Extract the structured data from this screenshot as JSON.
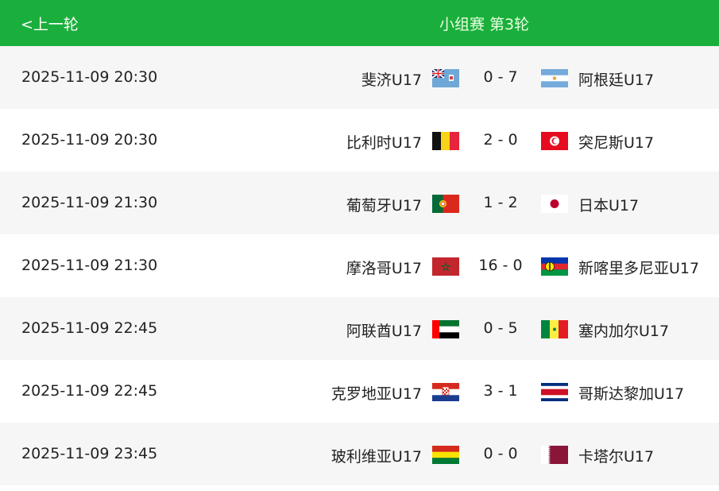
{
  "header": {
    "prev_label": "<上一轮",
    "title": "小组赛 第3轮",
    "color": "#1aaf3c"
  },
  "matches": [
    {
      "time": "2025-11-09 20:30",
      "home": "斐济U17",
      "home_flag": "fiji",
      "score": "0 - 7",
      "away": "阿根廷U17",
      "away_flag": "argentina"
    },
    {
      "time": "2025-11-09 20:30",
      "home": "比利时U17",
      "home_flag": "belgium",
      "score": "2 - 0",
      "away": "突尼斯U17",
      "away_flag": "tunisia"
    },
    {
      "time": "2025-11-09 21:30",
      "home": "葡萄牙U17",
      "home_flag": "portugal",
      "score": "1 - 2",
      "away": "日本U17",
      "away_flag": "japan"
    },
    {
      "time": "2025-11-09 21:30",
      "home": "摩洛哥U17",
      "home_flag": "morocco",
      "score": "16 - 0",
      "away": "新喀里多尼亚U17",
      "away_flag": "new-caledonia"
    },
    {
      "time": "2025-11-09 22:45",
      "home": "阿联酋U17",
      "home_flag": "uae",
      "score": "0 - 5",
      "away": "塞内加尔U17",
      "away_flag": "senegal"
    },
    {
      "time": "2025-11-09 22:45",
      "home": "克罗地亚U17",
      "home_flag": "croatia",
      "score": "3 - 1",
      "away": "哥斯达黎加U17",
      "away_flag": "costa-rica"
    },
    {
      "time": "2025-11-09 23:45",
      "home": "玻利维亚U17",
      "home_flag": "bolivia",
      "score": "0 - 0",
      "away": "卡塔尔U17",
      "away_flag": "qatar"
    }
  ]
}
